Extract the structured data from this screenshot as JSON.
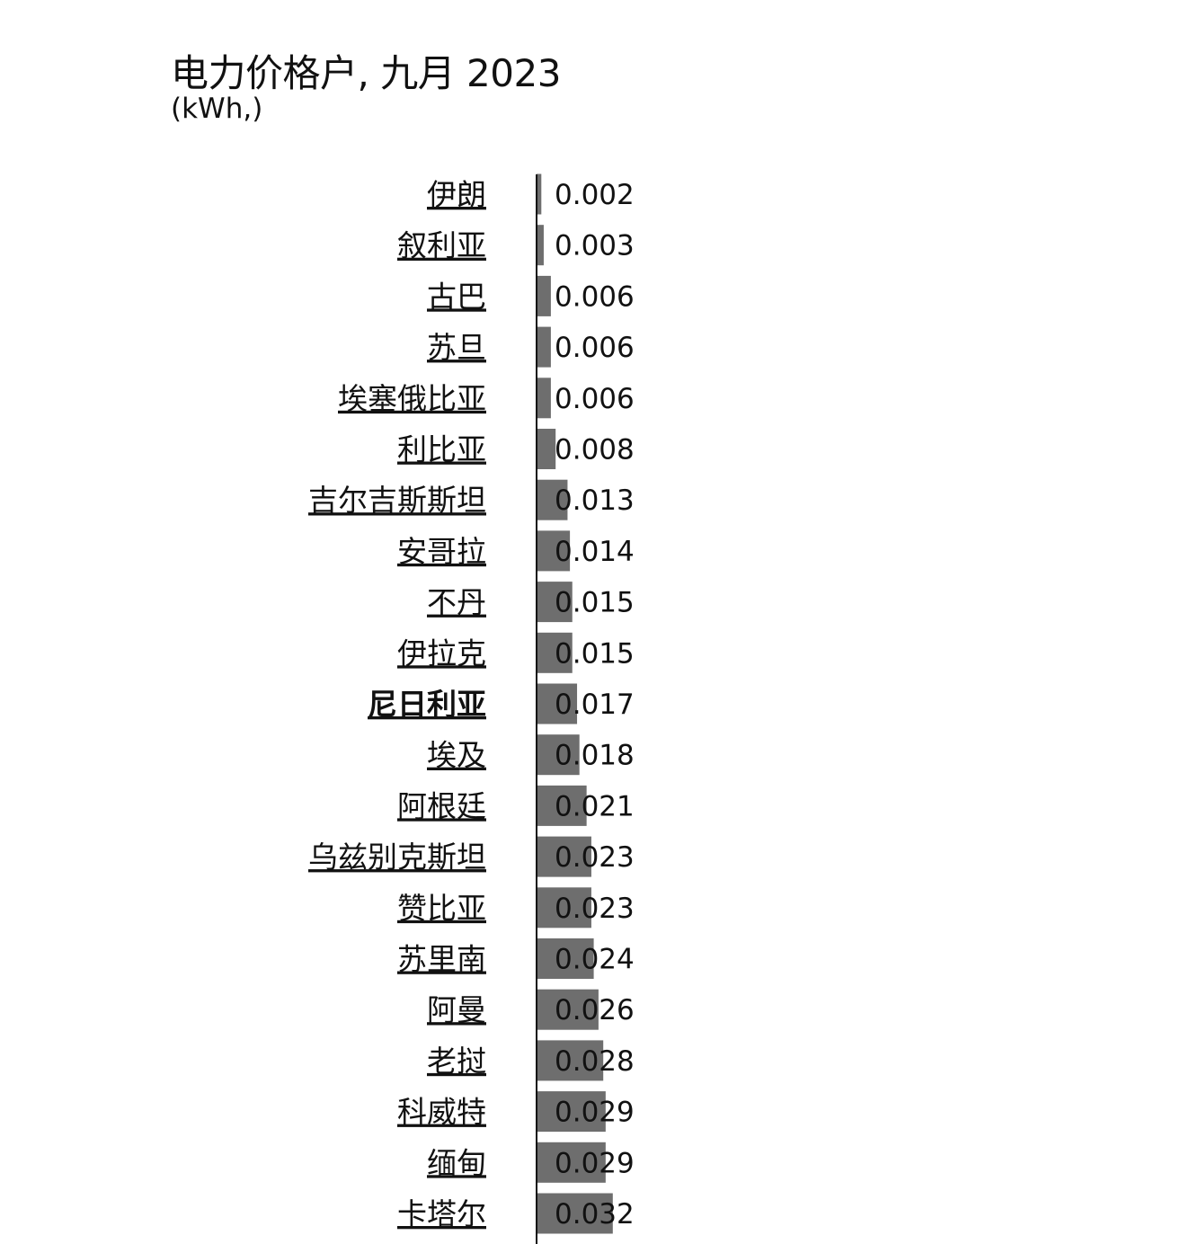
{
  "title": "电力价格户, 九月 2023",
  "subtitle": "(kWh,)",
  "chart_data": {
    "type": "bar",
    "orientation": "horizontal",
    "title": "电力价格户, 九月 2023",
    "subtitle": "(kWh,)",
    "bar_color": "#6e6e6e",
    "highlighted_category": "尼日利亚",
    "categories": [
      "伊朗",
      "叙利亚",
      "古巴",
      "苏旦",
      "埃塞俄比亚",
      "利比亚",
      "吉尔吉斯斯坦",
      "安哥拉",
      "不丹",
      "伊拉克",
      "尼日利亚",
      "埃及",
      "阿根廷",
      "乌兹别克斯坦",
      "赞比亚",
      "苏里南",
      "阿曼",
      "老挝",
      "科威特",
      "缅甸",
      "卡塔尔"
    ],
    "values": [
      0.002,
      0.003,
      0.006,
      0.006,
      0.006,
      0.008,
      0.013,
      0.014,
      0.015,
      0.015,
      0.017,
      0.018,
      0.021,
      0.023,
      0.023,
      0.024,
      0.026,
      0.028,
      0.029,
      0.029,
      0.032
    ],
    "value_labels": [
      "0.002",
      "0.003",
      "0.006",
      "0.006",
      "0.006",
      "0.008",
      "0.013",
      "0.014",
      "0.015",
      "0.015",
      "0.017",
      "0.018",
      "0.021",
      "0.023",
      "0.023",
      "0.024",
      "0.026",
      "0.028",
      "0.029",
      "0.029",
      "0.032"
    ],
    "grid": false,
    "legend": "none"
  }
}
